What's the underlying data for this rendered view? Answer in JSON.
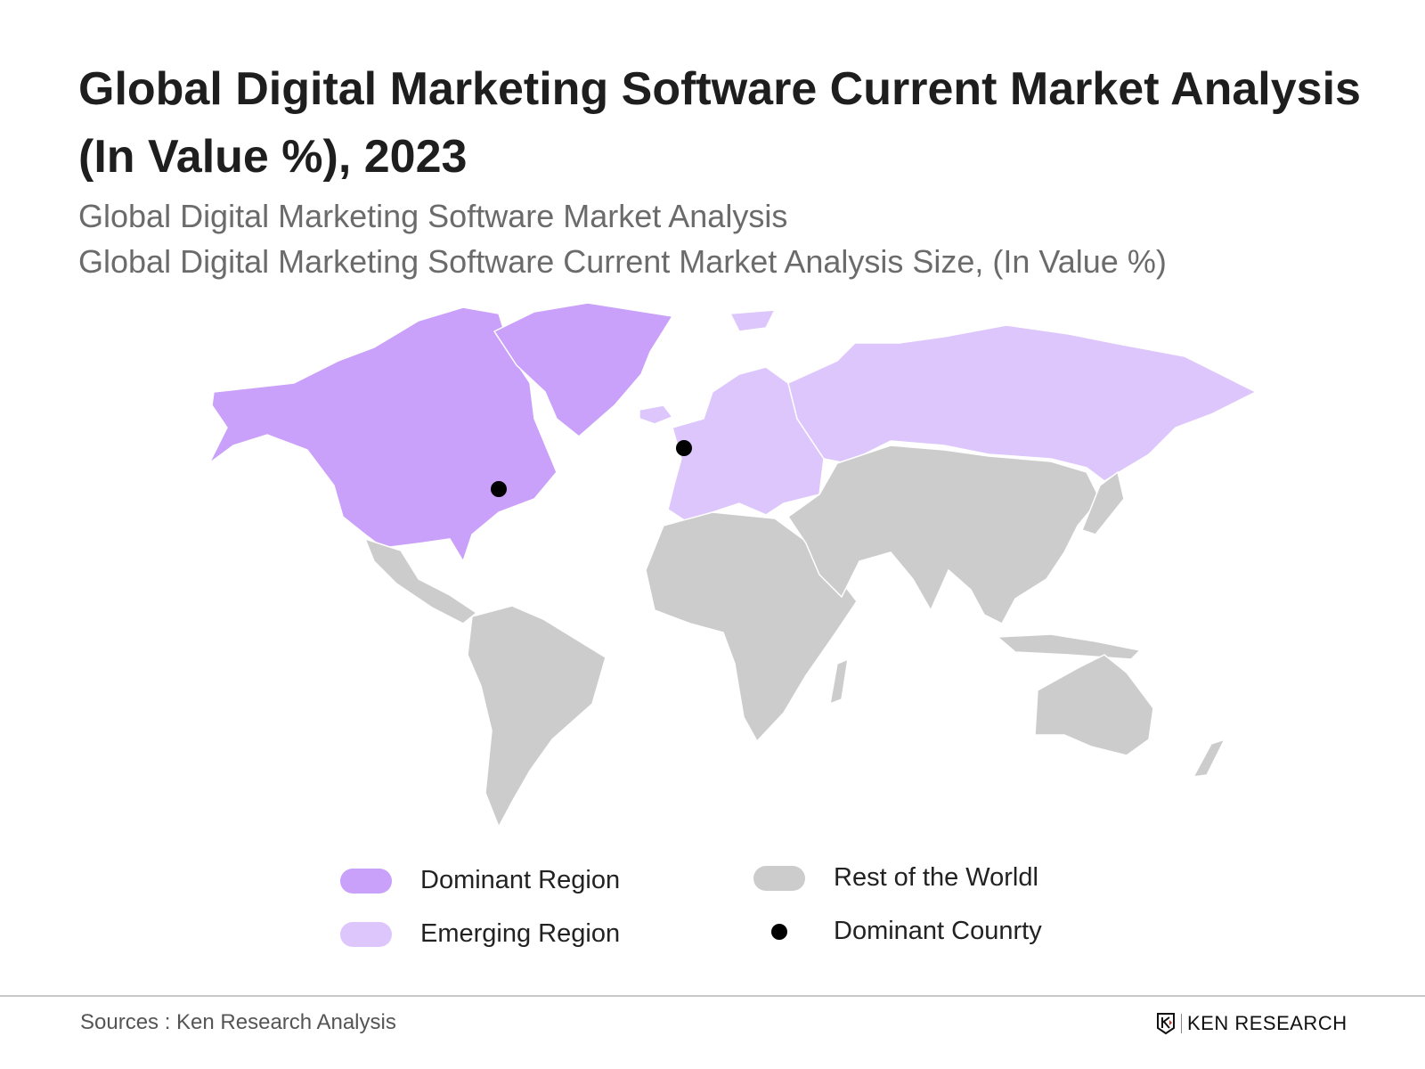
{
  "title": "Global Digital Marketing Software Current Market Analysis (In Value %), 2023",
  "subtitle_1": "Global Digital Marketing Software Market Analysis",
  "subtitle_2": "Global Digital Marketing Software Current Market Analysis Size, (In Value %)",
  "map": {
    "regions": {
      "dominant": [
        "North America",
        "Greenland"
      ],
      "emerging": [
        "Europe",
        "Russia"
      ],
      "rest": [
        "Latin America",
        "Africa",
        "Middle East",
        "Asia",
        "Oceania"
      ]
    },
    "dominant_countries": [
      "United States",
      "United Kingdom"
    ]
  },
  "legend": [
    {
      "label": "Dominant Region",
      "color": "#c9a0fa"
    },
    {
      "label": "Emerging Region",
      "color": "#dcc6fc"
    },
    {
      "label": "Rest of the Worldl",
      "color": "#cccccc"
    },
    {
      "label": "Dominant Counrty",
      "color": "#000000"
    }
  ],
  "footer": {
    "source": "Sources : Ken Research Analysis",
    "logo_text": "KEN RESEARCH"
  }
}
